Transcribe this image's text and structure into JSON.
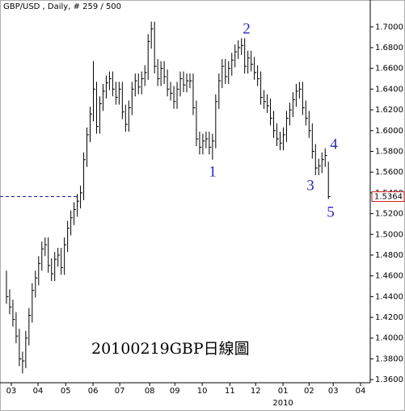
{
  "chart_data": {
    "type": "hlc",
    "title": "GBP/USD , Daily, # 259 / 500",
    "caption": "20100219GBP日線圖",
    "year_label": "2010",
    "color": "#000000",
    "annotation_color": "#2a2ab8",
    "annotations": [
      "1",
      "2",
      "3",
      "4",
      "5"
    ],
    "last_price": 1.5364,
    "last_price_color": "#d02020",
    "level_line_color": "#1a1a9a",
    "xlim": [
      -2,
      113
    ],
    "ylim": [
      1.357,
      1.722
    ],
    "xticks": [
      {
        "value": 1.5,
        "label": "03"
      },
      {
        "value": 9.8,
        "label": "04"
      },
      {
        "value": 18.4,
        "label": "05"
      },
      {
        "value": 26.9,
        "label": "06"
      },
      {
        "value": 35.2,
        "label": "07"
      },
      {
        "value": 44.5,
        "label": "08"
      },
      {
        "value": 52.3,
        "label": "09"
      },
      {
        "value": 60.8,
        "label": "10"
      },
      {
        "value": 69.4,
        "label": "11"
      },
      {
        "value": 77.4,
        "label": "12"
      },
      {
        "value": 85.9,
        "label": "01"
      },
      {
        "value": 94,
        "label": "02"
      },
      {
        "value": 101.5,
        "label": "03"
      },
      {
        "value": 110,
        "label": "04"
      }
    ],
    "yticks": [
      {
        "value": 1.36,
        "label": "1.3600"
      },
      {
        "value": 1.38,
        "label": "1.3800"
      },
      {
        "value": 1.4,
        "label": "1.4000"
      },
      {
        "value": 1.42,
        "label": "1.4200"
      },
      {
        "value": 1.44,
        "label": "1.4400"
      },
      {
        "value": 1.46,
        "label": "1.4600"
      },
      {
        "value": 1.48,
        "label": "1.4800"
      },
      {
        "value": 1.5,
        "label": "1.5000"
      },
      {
        "value": 1.52,
        "label": "1.5200"
      },
      {
        "value": 1.54,
        "label": "1.5400"
      },
      {
        "value": 1.56,
        "label": "1.5600"
      },
      {
        "value": 1.58,
        "label": "1.5800"
      },
      {
        "value": 1.6,
        "label": "1.6000"
      },
      {
        "value": 1.62,
        "label": "1.6200"
      },
      {
        "value": 1.64,
        "label": "1.6400"
      },
      {
        "value": 1.66,
        "label": "1.6600"
      },
      {
        "value": 1.68,
        "label": "1.6800"
      },
      {
        "value": 1.7,
        "label": "1.7000"
      }
    ],
    "high": [
      1.465,
      1.447,
      1.437,
      1.425,
      1.409,
      1.387,
      1.407,
      1.429,
      1.453,
      1.465,
      1.479,
      1.493,
      1.497,
      1.497,
      1.477,
      1.483,
      1.487,
      1.487,
      1.497,
      1.513,
      1.523,
      1.531,
      1.539,
      1.547,
      1.579,
      1.603,
      1.623,
      1.667,
      1.647,
      1.633,
      1.645,
      1.653,
      1.657,
      1.657,
      1.647,
      1.647,
      1.647,
      1.625,
      1.629,
      1.647,
      1.655,
      1.655,
      1.657,
      1.663,
      1.693,
      1.705,
      1.705,
      1.669,
      1.667,
      1.667,
      1.659,
      1.647,
      1.643,
      1.647,
      1.657,
      1.657,
      1.655,
      1.655,
      1.655,
      1.629,
      1.599,
      1.597,
      1.599,
      1.599,
      1.597,
      1.635,
      1.655,
      1.669,
      1.669,
      1.667,
      1.675,
      1.683,
      1.687,
      1.689,
      1.689,
      1.677,
      1.677,
      1.671,
      1.663,
      1.657,
      1.639,
      1.635,
      1.631,
      1.619,
      1.607,
      1.599,
      1.603,
      1.619,
      1.627,
      1.637,
      1.645,
      1.647,
      1.647,
      1.629,
      1.619,
      1.607,
      1.587,
      1.573,
      1.579,
      1.583,
      1.57
    ],
    "low": [
      1.433,
      1.423,
      1.411,
      1.395,
      1.373,
      1.366,
      1.371,
      1.393,
      1.415,
      1.439,
      1.451,
      1.465,
      1.479,
      1.463,
      1.455,
      1.455,
      1.469,
      1.461,
      1.461,
      1.483,
      1.499,
      1.509,
      1.517,
      1.525,
      1.533,
      1.565,
      1.589,
      1.609,
      1.597,
      1.597,
      1.619,
      1.631,
      1.639,
      1.633,
      1.625,
      1.625,
      1.611,
      1.599,
      1.599,
      1.615,
      1.633,
      1.635,
      1.635,
      1.643,
      1.649,
      1.679,
      1.655,
      1.643,
      1.643,
      1.645,
      1.633,
      1.629,
      1.621,
      1.621,
      1.633,
      1.637,
      1.637,
      1.641,
      1.615,
      1.585,
      1.577,
      1.577,
      1.583,
      1.577,
      1.572,
      1.583,
      1.621,
      1.641,
      1.645,
      1.645,
      1.653,
      1.661,
      1.669,
      1.673,
      1.655,
      1.655,
      1.657,
      1.649,
      1.643,
      1.625,
      1.621,
      1.617,
      1.605,
      1.593,
      1.585,
      1.581,
      1.581,
      1.589,
      1.605,
      1.613,
      1.623,
      1.631,
      1.615,
      1.605,
      1.593,
      1.573,
      1.557,
      1.557,
      1.559,
      1.565,
      1.534
    ],
    "close": [
      1.44,
      1.43,
      1.418,
      1.402,
      1.38,
      1.378,
      1.4,
      1.422,
      1.446,
      1.458,
      1.472,
      1.486,
      1.49,
      1.47,
      1.462,
      1.476,
      1.48,
      1.468,
      1.49,
      1.506,
      1.516,
      1.524,
      1.532,
      1.54,
      1.572,
      1.596,
      1.616,
      1.64,
      1.604,
      1.626,
      1.638,
      1.646,
      1.65,
      1.64,
      1.632,
      1.64,
      1.618,
      1.606,
      1.622,
      1.64,
      1.648,
      1.642,
      1.65,
      1.656,
      1.686,
      1.698,
      1.662,
      1.65,
      1.66,
      1.652,
      1.64,
      1.636,
      1.628,
      1.64,
      1.65,
      1.644,
      1.648,
      1.648,
      1.622,
      1.592,
      1.584,
      1.59,
      1.592,
      1.584,
      1.59,
      1.628,
      1.648,
      1.662,
      1.652,
      1.66,
      1.668,
      1.676,
      1.68,
      1.682,
      1.662,
      1.67,
      1.664,
      1.656,
      1.65,
      1.632,
      1.628,
      1.624,
      1.612,
      1.6,
      1.592,
      1.588,
      1.596,
      1.612,
      1.62,
      1.63,
      1.638,
      1.64,
      1.622,
      1.612,
      1.6,
      1.58,
      1.564,
      1.566,
      1.572,
      1.576,
      1.5364
    ]
  }
}
